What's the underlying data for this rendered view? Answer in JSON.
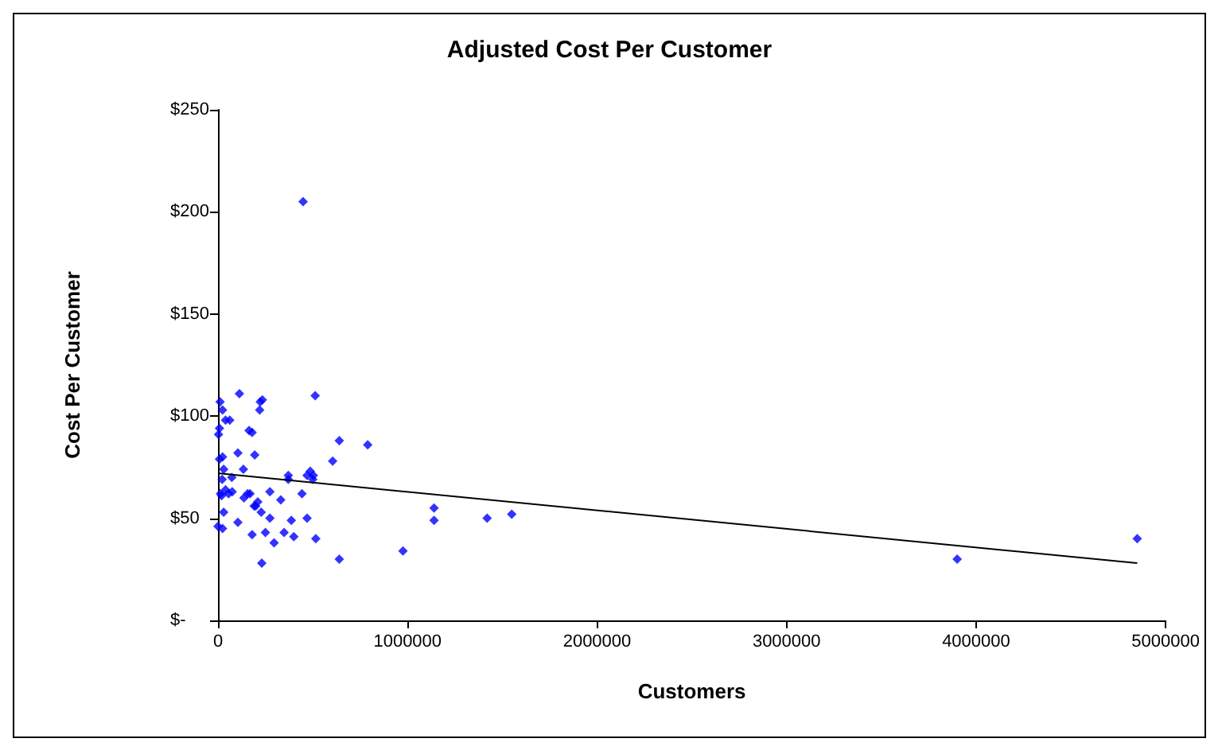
{
  "chart_data": {
    "type": "scatter",
    "title": "Adjusted Cost Per Customer",
    "xlabel": "Customers",
    "ylabel": "Cost Per Customer",
    "marker": "diamond",
    "grid": false,
    "xlim": [
      0,
      5000000
    ],
    "xticks": [
      0,
      1000000,
      2000000,
      3000000,
      4000000,
      5000000
    ],
    "ylim": [
      0,
      250
    ],
    "yticks": [
      {
        "value": 0,
        "label": "$-"
      },
      {
        "value": 50,
        "label": "$50"
      },
      {
        "value": 100,
        "label": "$100"
      },
      {
        "value": 150,
        "label": "$150"
      },
      {
        "value": 200,
        "label": "$200"
      },
      {
        "value": 250,
        "label": "$250"
      }
    ],
    "series": [
      {
        "color": "#0000ff",
        "x": [
          449000,
          113000,
          11000,
          223000,
          234000,
          24000,
          220000,
          513000,
          40000,
          62000,
          8000,
          3000,
          164000,
          180000,
          640000,
          790000,
          8000,
          24000,
          105000,
          194000,
          605000,
          30000,
          134000,
          73000,
          22000,
          371000,
          371000,
          470000,
          487000,
          503000,
          500000,
          13000,
          19000,
          40000,
          56000,
          75000,
          137000,
          156000,
          169000,
          199000,
          210000,
          191000,
          274000,
          331000,
          443000,
          30000,
          105000,
          228000,
          274000,
          387000,
          470000,
          0,
          24000,
          180000,
          250000,
          349000,
          400000,
          516000,
          296000,
          976000,
          640000,
          231000,
          1140000,
          1140000,
          1420000,
          1550000,
          3900000,
          4850000
        ],
        "values": [
          205,
          111,
          107,
          107,
          108,
          103,
          103,
          110,
          98,
          98,
          94,
          91,
          93,
          92,
          88,
          86,
          79,
          80,
          82,
          81,
          78,
          74,
          74,
          70,
          69,
          71,
          69,
          71,
          73,
          71,
          69,
          62,
          61,
          64,
          62,
          63,
          60,
          62,
          62,
          56,
          58,
          56,
          63,
          59,
          62,
          53,
          48,
          53,
          50,
          49,
          50,
          46,
          45,
          42,
          43,
          43,
          41,
          40,
          38,
          34,
          30,
          28,
          55,
          49,
          50,
          52,
          30,
          40
        ]
      },
      {
        "type": "line",
        "color": "#000000",
        "marker": "none",
        "line_style": "solid",
        "x": [
          0,
          4850000
        ],
        "values": [
          72,
          28
        ]
      }
    ]
  }
}
